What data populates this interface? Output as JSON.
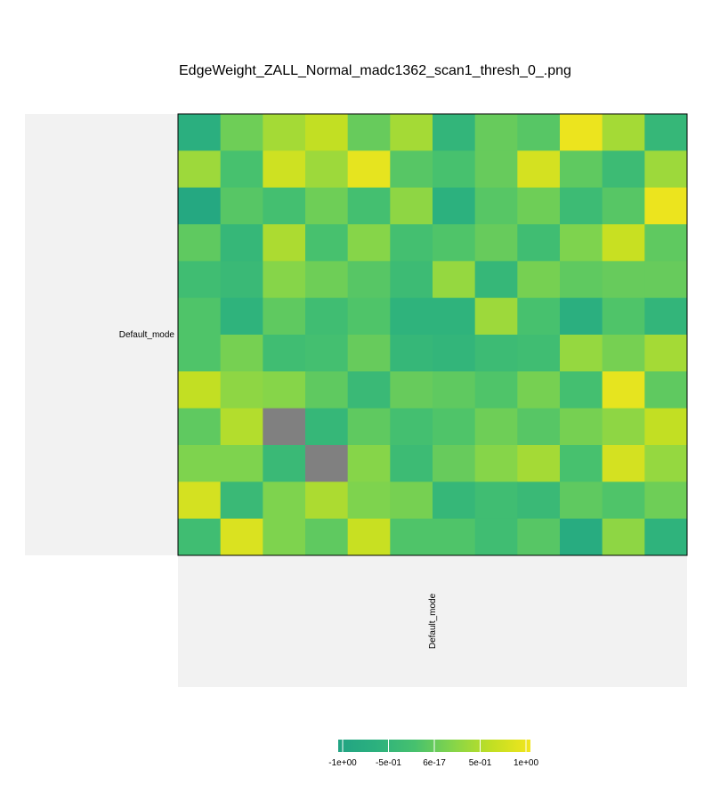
{
  "chart_data": {
    "type": "heatmap",
    "title": "EdgeWeight_ZALL_Normal_madc1362_scan1_thresh_0_.png",
    "row_label": "Default_mode",
    "col_label": "Default_mode",
    "rows": 12,
    "cols": 12,
    "value_range": [
      -1,
      1
    ],
    "missing_color": "#808080",
    "colorbar": {
      "ticks": [
        -1,
        -0.5,
        0,
        0.5,
        1
      ],
      "tick_labels": [
        "-1e+00",
        "-5e-01",
        "6e-17",
        "5e-01",
        "1e+00"
      ],
      "low_color": "#21a383",
      "high_color": "#f2e51d"
    },
    "values": [
      [
        -0.65,
        0.05,
        0.4,
        0.6,
        0.0,
        0.4,
        -0.5,
        0.0,
        -0.1,
        0.95,
        0.4,
        -0.45
      ],
      [
        0.35,
        -0.2,
        0.7,
        0.35,
        0.9,
        -0.1,
        -0.2,
        0.0,
        0.75,
        -0.05,
        -0.35,
        0.35
      ],
      [
        -0.85,
        -0.1,
        -0.25,
        0.05,
        -0.25,
        0.25,
        -0.6,
        -0.1,
        0.05,
        -0.35,
        -0.1,
        0.95
      ],
      [
        -0.05,
        -0.45,
        0.45,
        -0.2,
        0.2,
        -0.25,
        -0.15,
        0.0,
        -0.3,
        0.15,
        0.65,
        -0.05
      ],
      [
        -0.3,
        -0.4,
        0.2,
        0.05,
        -0.1,
        -0.35,
        0.3,
        -0.45,
        0.1,
        -0.05,
        0.0,
        0.0
      ],
      [
        -0.15,
        -0.55,
        -0.05,
        -0.3,
        -0.15,
        -0.55,
        -0.55,
        0.35,
        -0.2,
        -0.65,
        -0.15,
        -0.5
      ],
      [
        -0.15,
        0.1,
        -0.3,
        -0.25,
        0.0,
        -0.45,
        -0.5,
        -0.35,
        -0.3,
        0.3,
        0.1,
        0.4
      ],
      [
        0.6,
        0.25,
        0.2,
        -0.05,
        -0.4,
        0.0,
        -0.05,
        -0.15,
        0.1,
        -0.25,
        0.9,
        -0.05
      ],
      [
        -0.05,
        0.5,
        null,
        -0.45,
        -0.05,
        -0.25,
        -0.15,
        0.05,
        -0.1,
        0.1,
        0.25,
        0.6
      ],
      [
        0.15,
        0.15,
        -0.4,
        null,
        0.2,
        -0.35,
        0.0,
        0.2,
        0.4,
        -0.2,
        0.75,
        0.3
      ],
      [
        0.75,
        -0.4,
        0.15,
        0.45,
        0.15,
        0.1,
        -0.45,
        -0.3,
        -0.4,
        -0.05,
        -0.15,
        0.05
      ],
      [
        -0.3,
        0.8,
        0.15,
        -0.05,
        0.65,
        -0.15,
        -0.15,
        -0.3,
        -0.1,
        -0.75,
        0.25,
        -0.55
      ]
    ]
  }
}
